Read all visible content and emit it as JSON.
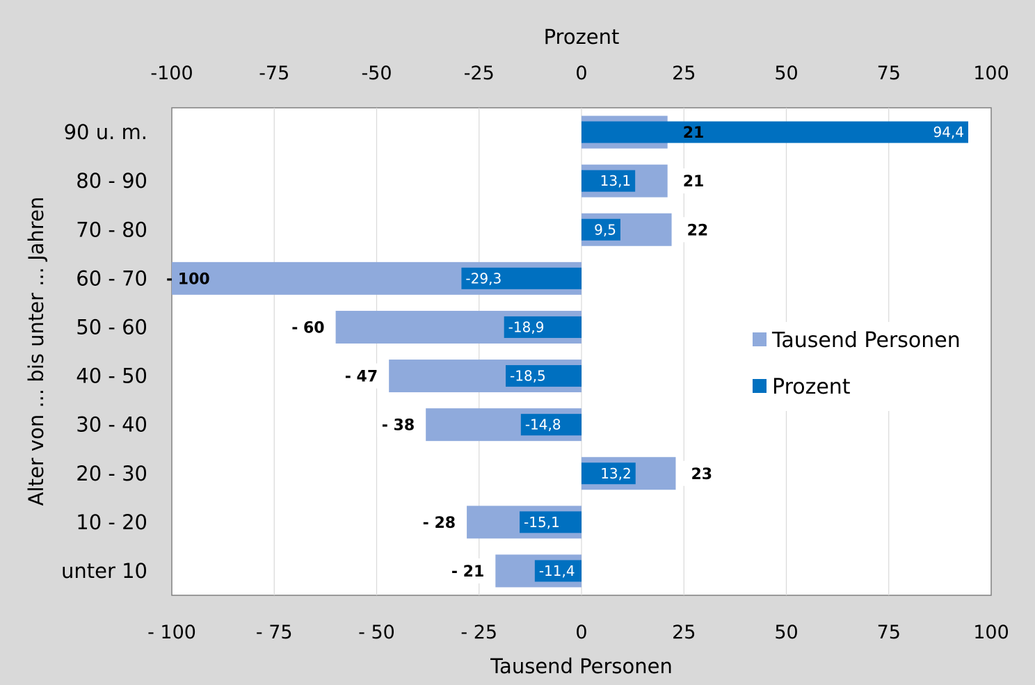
{
  "chart_data": {
    "type": "bar",
    "orientation": "horizontal",
    "categories": [
      "90 u. m.",
      "80 - 90",
      "70 - 80",
      "60 - 70",
      "50 - 60",
      "40 - 50",
      "30 - 40",
      "20 - 30",
      "10 - 20",
      "unter 10"
    ],
    "series": [
      {
        "name": "Tausend Personen",
        "color": "#8faadc",
        "values": [
          21,
          21,
          22,
          -100,
          -60,
          -47,
          -38,
          23,
          -28,
          -21
        ],
        "labels": [
          "21",
          "21",
          "22",
          "- 100",
          "- 60",
          "- 47",
          "- 38",
          "23",
          "- 28",
          "- 21"
        ]
      },
      {
        "name": "Prozent",
        "color": "#0070c0",
        "values": [
          94.4,
          13.1,
          9.5,
          -29.3,
          -18.9,
          -18.5,
          -14.8,
          13.2,
          -15.1,
          -11.4
        ],
        "labels": [
          "94,4",
          "13,1",
          "9,5",
          "-29,3",
          "-18,9",
          "-18,5",
          "-14,8",
          "13,2",
          "-15,1",
          "-11,4"
        ]
      }
    ],
    "ylabel": "Alter von ... bis unter ... Jahren",
    "xlabel_bottom": "Tausend Personen",
    "xlabel_top": "Prozent",
    "xlim": [
      -100,
      100
    ],
    "xticks": [
      -100,
      -75,
      -50,
      -25,
      0,
      25,
      50,
      75,
      100
    ],
    "xtick_labels_top": [
      "-100",
      "-75",
      "-50",
      "-25",
      "0",
      "25",
      "50",
      "75",
      "100"
    ],
    "xtick_labels_bottom": [
      "- 100",
      "- 75",
      "- 50",
      "- 25",
      "0",
      "25",
      "50",
      "75",
      "100"
    ],
    "grid": true,
    "legend_position": "right"
  }
}
